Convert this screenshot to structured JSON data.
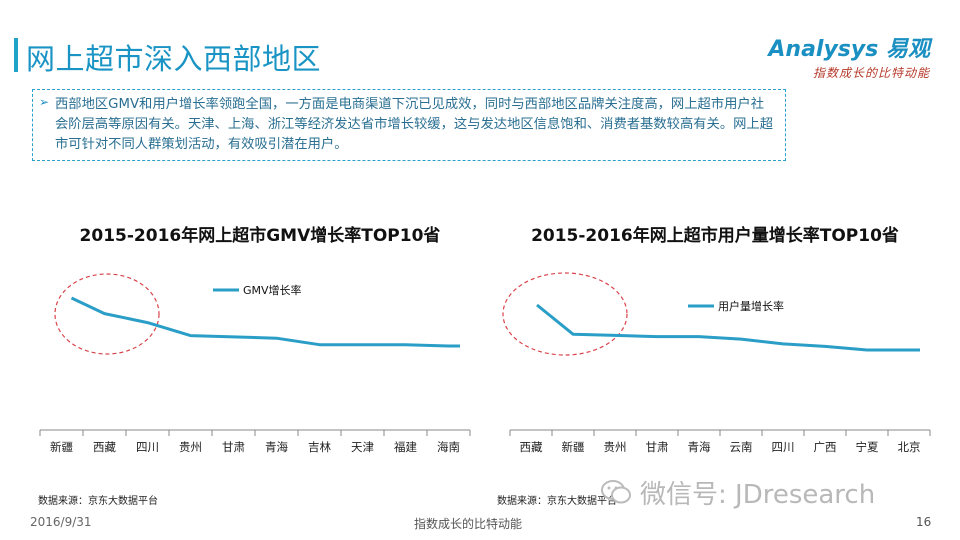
{
  "header": {
    "title": "网上超市深入西部地区",
    "logo_main": "Analysys 易观",
    "logo_sub": "指数成长的比特动能"
  },
  "summary": {
    "text": "西部地区GMV和用户增长率领跑全国，一方面是电商渠道下沉已见成效，同时与西部地区品牌关注度高，网上超市用户社会阶层高等原因有关。天津、上海、浙江等经济发达省市增长较缓，这与发达地区信息饱和、消费者基数较高有关。网上超市可针对不同人群策划活动，有效吸引潜在用户。"
  },
  "chart_data": [
    {
      "type": "line",
      "title": "2015-2016年网上超市GMV增长率TOP10省",
      "categories": [
        "新疆",
        "西藏",
        "四川",
        "贵州",
        "甘肃",
        "青海",
        "吉林",
        "天津",
        "福建",
        "海南"
      ],
      "series": [
        {
          "name": "GMV增长率",
          "values": [
            100,
            88,
            81,
            71,
            70,
            69,
            64,
            64,
            64,
            63
          ],
          "color": "#2a9ec6"
        }
      ],
      "legend": "top-center",
      "grid": false,
      "yaxis_visible": false
    },
    {
      "type": "line",
      "title": "2015-2016年网上超市用户量增长率TOP10省",
      "categories": [
        "西藏",
        "新疆",
        "贵州",
        "甘肃",
        "青海",
        "云南",
        "四川",
        "广西",
        "宁夏",
        "北京"
      ],
      "series": [
        {
          "name": "用户量增长率",
          "values": [
            100,
            76,
            75,
            74,
            74,
            72,
            68,
            66,
            63,
            63
          ],
          "color": "#2a9ec6"
        }
      ],
      "legend": "top-center",
      "grid": false,
      "yaxis_visible": false
    }
  ],
  "sources": {
    "chart1": "数据来源：京东大数据平台",
    "chart2": "数据来源：京东大数据平台"
  },
  "footer": {
    "date": "2016/9/31",
    "tagline": "指数成长的比特动能",
    "page": "16"
  },
  "watermark": {
    "wechat": "微信号: JDresearch"
  }
}
